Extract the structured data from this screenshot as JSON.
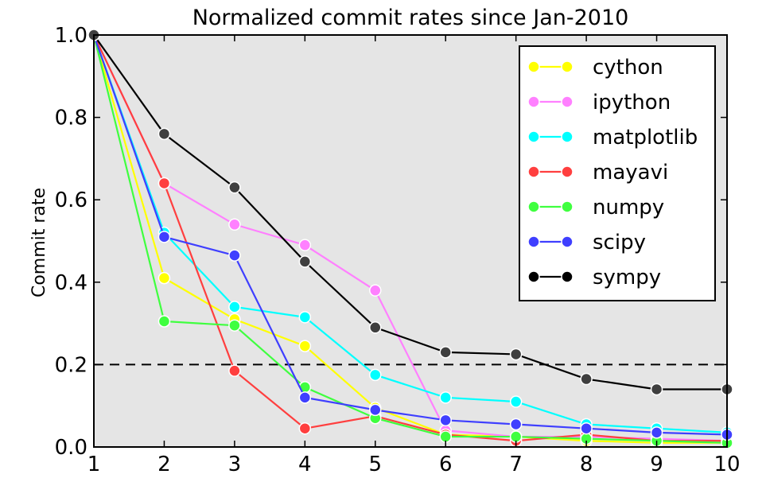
{
  "chart_data": {
    "type": "line",
    "title": "Normalized commit rates since Jan-2010",
    "xlabel": "",
    "ylabel": "Commit rate",
    "x": [
      1,
      2,
      3,
      4,
      5,
      6,
      7,
      8,
      9,
      10
    ],
    "xticks": [
      "1",
      "2",
      "3",
      "4",
      "5",
      "6",
      "7",
      "8",
      "9",
      "10"
    ],
    "yticks": [
      "0.0",
      "0.2",
      "0.4",
      "0.6",
      "0.8",
      "1.0"
    ],
    "xlim": [
      1,
      10
    ],
    "ylim": [
      0,
      1
    ],
    "grid": false,
    "legend_position": "top-right",
    "background": "#e5e5e5",
    "reference_line": {
      "y": 0.2,
      "style": "dashed",
      "color": "#000000"
    },
    "series": [
      {
        "name": "cython",
        "color": "#ffff00",
        "values": [
          1.0,
          0.41,
          0.31,
          0.245,
          0.095,
          0.03,
          0.025,
          0.015,
          0.01,
          0.01
        ]
      },
      {
        "name": "ipython",
        "color": "#ff80ff",
        "values": [
          1.0,
          0.64,
          0.54,
          0.49,
          0.38,
          0.04,
          0.025,
          0.025,
          0.02,
          0.015
        ]
      },
      {
        "name": "matplotlib",
        "color": "#00ffff",
        "values": [
          1.0,
          0.52,
          0.34,
          0.315,
          0.175,
          0.12,
          0.11,
          0.055,
          0.045,
          0.035
        ]
      },
      {
        "name": "mayavi",
        "color": "#ff3f3f",
        "values": [
          1.0,
          0.64,
          0.185,
          0.045,
          0.075,
          0.03,
          0.015,
          0.03,
          0.015,
          0.015
        ]
      },
      {
        "name": "numpy",
        "color": "#3fff3f",
        "values": [
          1.0,
          0.305,
          0.295,
          0.145,
          0.07,
          0.025,
          0.025,
          0.02,
          0.015,
          0.01
        ]
      },
      {
        "name": "scipy",
        "color": "#3f3fff",
        "values": [
          1.0,
          0.51,
          0.465,
          0.12,
          0.09,
          0.065,
          0.055,
          0.045,
          0.035,
          0.03
        ]
      },
      {
        "name": "sympy",
        "color": "#000000",
        "values": [
          1.0,
          0.76,
          0.63,
          0.45,
          0.29,
          0.23,
          0.225,
          0.165,
          0.14,
          0.14
        ]
      }
    ]
  }
}
